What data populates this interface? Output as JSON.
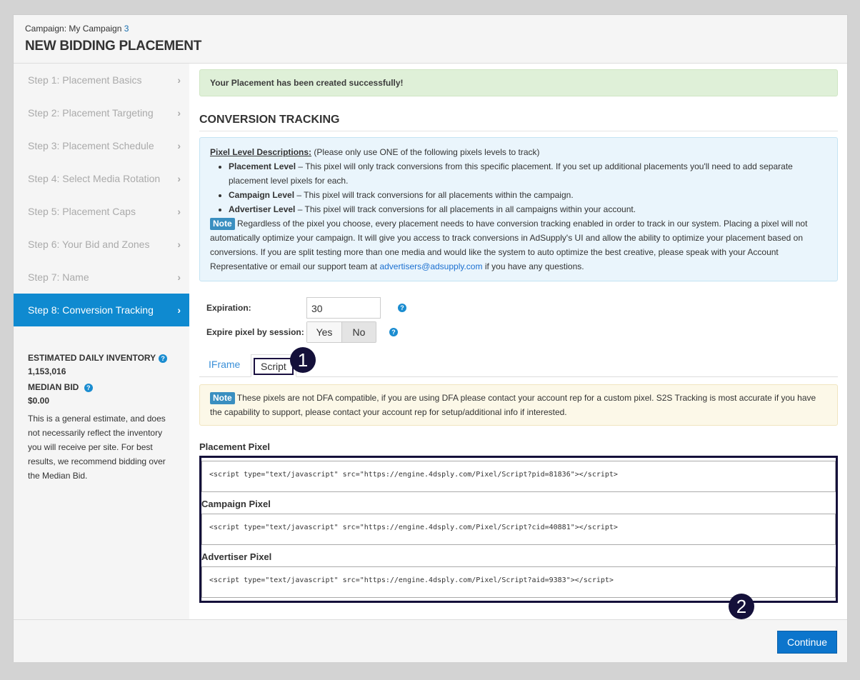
{
  "header": {
    "campaign_label": "Campaign: My Campaign ",
    "campaign_num": "3",
    "title": "NEW BIDDING PLACEMENT"
  },
  "sidebar": {
    "steps": [
      {
        "label": "Step 1: Placement Basics"
      },
      {
        "label": "Step 2: Placement Targeting"
      },
      {
        "label": "Step 3: Placement Schedule"
      },
      {
        "label": "Step 4: Select Media Rotation"
      },
      {
        "label": "Step 5: Placement Caps"
      },
      {
        "label": "Step 6: Your Bid and Zones"
      },
      {
        "label": "Step 7: Name"
      },
      {
        "label": "Step 8: Conversion Tracking",
        "active": true
      }
    ],
    "chevron": "›",
    "inventory_label": "ESTIMATED DAILY INVENTORY",
    "inventory_value": "1,153,016",
    "median_label": "MEDIAN BID",
    "median_value": "$0.00",
    "note": "This is a general estimate, and does not necessarily reflect the inventory you will receive per site. For best results, we recommend bidding over the Median Bid."
  },
  "main": {
    "success": "Your Placement has been created successfully!",
    "section_title": "CONVERSION TRACKING",
    "info": {
      "heading": "Pixel Level Descriptions:",
      "heading_note": " (Please only use ONE of the following pixels levels to track)",
      "items": [
        {
          "term": "Placement Level",
          "desc": " – This pixel will only track conversions from this specific placement. If you set up additional placements you'll need to add separate placement level pixels for each."
        },
        {
          "term": "Campaign Level",
          "desc": " – This pixel will track conversions for all placements within the campaign."
        },
        {
          "term": "Advertiser Level",
          "desc": " – This pixel will track conversions for all placements in all campaigns within your account."
        }
      ],
      "note_badge": "Note",
      "note_text": " Regardless of the pixel you choose, every placement needs to have conversion tracking enabled in order to track in our system. Placing a pixel will not automatically optimize your campaign. It will give you access to track conversions in AdSupply's UI and allow the ability to optimize your placement based on conversions. If you are split testing more than one media and would like the system to auto optimize the best creative, please speak with your Account Representative or email our support team at ",
      "email": "advertisers@adsupply.com",
      "note_end": " if you have any questions."
    },
    "expiration_label": "Expiration:",
    "expiration_value": "30",
    "session_label": "Expire pixel by session:",
    "session_yes": "Yes",
    "session_no": "No",
    "session_selected": "No",
    "help": "?",
    "tabs": [
      {
        "label": "IFrame"
      },
      {
        "label": "Script",
        "active": true
      }
    ],
    "warn_badge": "Note",
    "warn_text": " These pixels are not DFA compatible, if you are using DFA please contact your account rep for a custom pixel. S2S Tracking is most accurate if you have the capability to support, please contact your account rep for setup/additional info if interested.",
    "pixels": [
      {
        "label": "Placement Pixel",
        "code": "<script type=\"text/javascript\" src=\"https://engine.4dsply.com/Pixel/Script?pid=81836\"></script>"
      },
      {
        "label": "Campaign Pixel",
        "code": "<script type=\"text/javascript\" src=\"https://engine.4dsply.com/Pixel/Script?cid=40881\"></script>"
      },
      {
        "label": "Advertiser Pixel",
        "code": "<script type=\"text/javascript\" src=\"https://engine.4dsply.com/Pixel/Script?aid=9383\"></script>"
      }
    ]
  },
  "callouts": [
    "1",
    "2"
  ],
  "footer": {
    "continue": "Continue"
  },
  "colors": {
    "accent": "#0f8ad0",
    "button": "#0c75cc",
    "callout": "#14103a"
  }
}
